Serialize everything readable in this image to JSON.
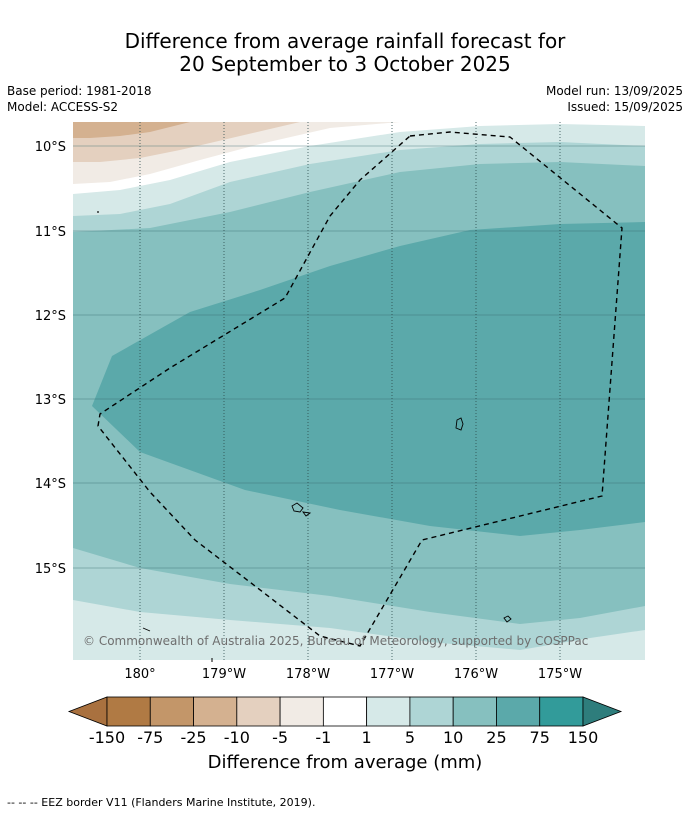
{
  "title": {
    "line1": "Difference from average rainfall forecast for",
    "line2": "20 September to 3 October 2025"
  },
  "meta": {
    "base_period": "Base period: 1981-2018",
    "model": "Model: ACCESS-S2",
    "model_run": "Model run: 13/09/2025",
    "issued": "Issued: 15/09/2025"
  },
  "map": {
    "lat_labels": [
      "10°S",
      "11°S",
      "12°S",
      "13°S",
      "14°S",
      "15°S"
    ],
    "lon_labels": [
      "180°",
      "179°W",
      "178°W",
      "177°W",
      "176°W",
      "175°W"
    ],
    "copyright": "© Commonwealth of Australia 2025, Bureau of Meteorology, supported by COSPPac",
    "colors": {
      "c_neg75": "#b07a44",
      "c_neg25": "#c39669",
      "c_neg10": "#d4b190",
      "c_neg5": "#e4d0bf",
      "c_neg1": "#f1ebe5",
      "c_neg1_pos1": "#ffffff",
      "c_pos1": "#d6e9e8",
      "c_pos5": "#aed5d5",
      "c_pos10": "#86c0bf",
      "c_pos25": "#5ba9aa",
      "c_pos75": "#329b9a"
    }
  },
  "colorbar": {
    "labels": [
      "-150",
      "-75",
      "-25",
      "-10",
      "-5",
      "-1",
      "1",
      "5",
      "10",
      "25",
      "75",
      "150"
    ],
    "colors": [
      "#a9713f",
      "#b07a44",
      "#c39669",
      "#d4b190",
      "#e4d0bf",
      "#f1ebe5",
      "#ffffff",
      "#d6e9e8",
      "#aed5d5",
      "#86c0bf",
      "#5ba9aa",
      "#329b9a",
      "#2e7d7c"
    ],
    "title": "Difference from average (mm)"
  },
  "footnote": "--  --  -- EEZ border V11 (Flanders Marine Institute, 2019)."
}
